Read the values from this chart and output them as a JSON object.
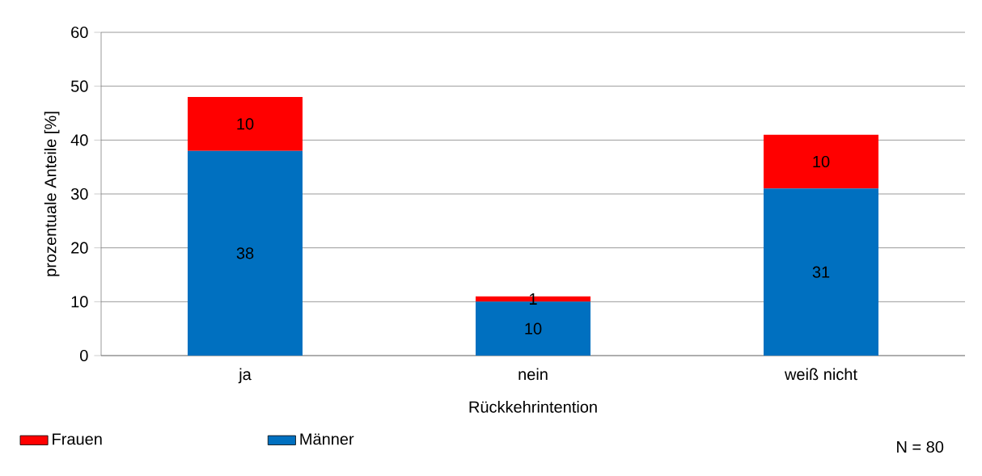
{
  "chart_data": {
    "type": "bar",
    "stacked": true,
    "categories": [
      "ja",
      "nein",
      "weiß nicht"
    ],
    "series": [
      {
        "name": "Männer",
        "color": "#0070c0",
        "values": [
          38,
          10,
          31
        ]
      },
      {
        "name": "Frauen",
        "color": "#ff0000",
        "values": [
          10,
          1,
          10
        ]
      }
    ],
    "xlabel": "Rückkehrintention",
    "ylabel": "prozentuale Anteile [%]",
    "ylim": [
      0,
      60
    ],
    "yticks": [
      0,
      10,
      20,
      30,
      40,
      50,
      60
    ],
    "grid": "y",
    "data_labels": true,
    "legend": "bottom",
    "annotations": [
      "N = 80"
    ]
  }
}
